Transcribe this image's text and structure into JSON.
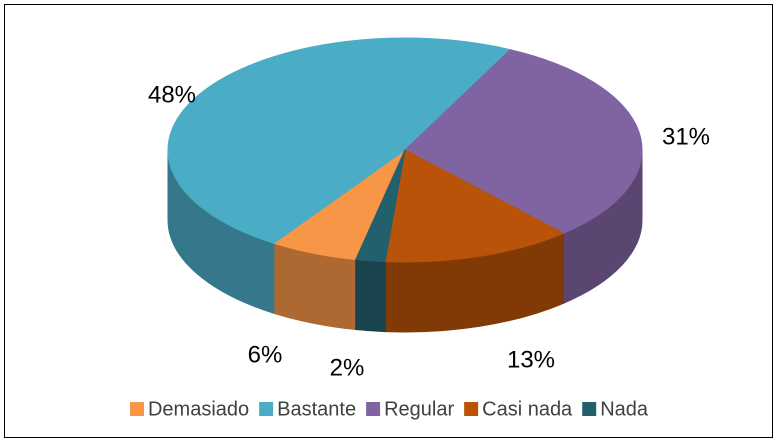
{
  "chart_data": {
    "type": "pie",
    "categories": [
      "Demasiado",
      "Bastante",
      "Regular",
      "Casi nada",
      "Nada"
    ],
    "values": [
      6,
      48,
      31,
      13,
      2
    ],
    "value_labels": [
      "6%",
      "48%",
      "31%",
      "13%",
      "2%"
    ],
    "colors": [
      "#f79646",
      "#4bacc6",
      "#8064a2",
      "#b85309",
      "#23606e"
    ],
    "legend": "bottom"
  }
}
